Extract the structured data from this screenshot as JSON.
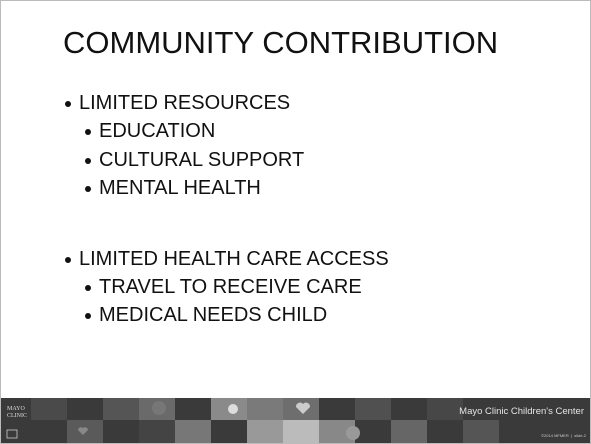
{
  "slide": {
    "title": "COMMUNITY CONTRIBUTION",
    "bullets": [
      {
        "text": "LIMITED RESOURCES",
        "children": [
          "EDUCATION",
          "CULTURAL SUPPORT",
          "MENTAL HEALTH"
        ]
      },
      {
        "text": "LIMITED HEALTH CARE ACCESS",
        "children": [
          "TRAVEL TO RECEIVE CARE",
          "MEDICAL NEEDS CHILD"
        ]
      }
    ],
    "footer": {
      "logo": [
        "MAYO",
        "CLINIC"
      ],
      "center_name": "Mayo Clinic Children's Center",
      "copyright": "©2014 MFMER  |  slide-2"
    }
  }
}
